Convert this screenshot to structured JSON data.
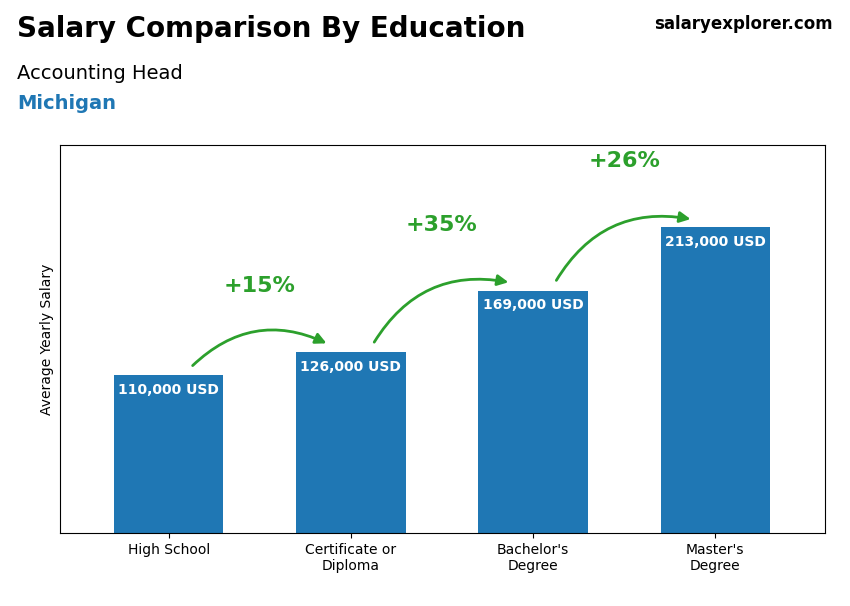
{
  "chart_data": {
    "type": "bar",
    "title": "Salary Comparison By Education",
    "subtitle": "Accounting Head",
    "ylabel": "Average Yearly Salary",
    "categories": [
      "High School",
      "Certificate or\nDiploma",
      "Bachelor's\nDegree",
      "Master's\nDegree"
    ],
    "values": [
      110000,
      126000,
      169000,
      213000
    ],
    "value_labels": [
      "110,000 USD",
      "126,000 USD",
      "169,000 USD",
      "213,000 USD"
    ],
    "data_labels": true,
    "ylim": [
      0,
      270000
    ],
    "tick_labels": "x",
    "grid": false,
    "annotations": [
      {
        "text": "Michigan"
      },
      {
        "text": "salaryexplorer.com"
      },
      {
        "text": "+15%",
        "from": "High School",
        "to": "Certificate or\nDiploma"
      },
      {
        "text": "+35%",
        "from": "Certificate or\nDiploma",
        "to": "Bachelor's\nDegree"
      },
      {
        "text": "+26%",
        "from": "Bachelor's\nDegree",
        "to": "Master's\nDegree"
      }
    ]
  }
}
